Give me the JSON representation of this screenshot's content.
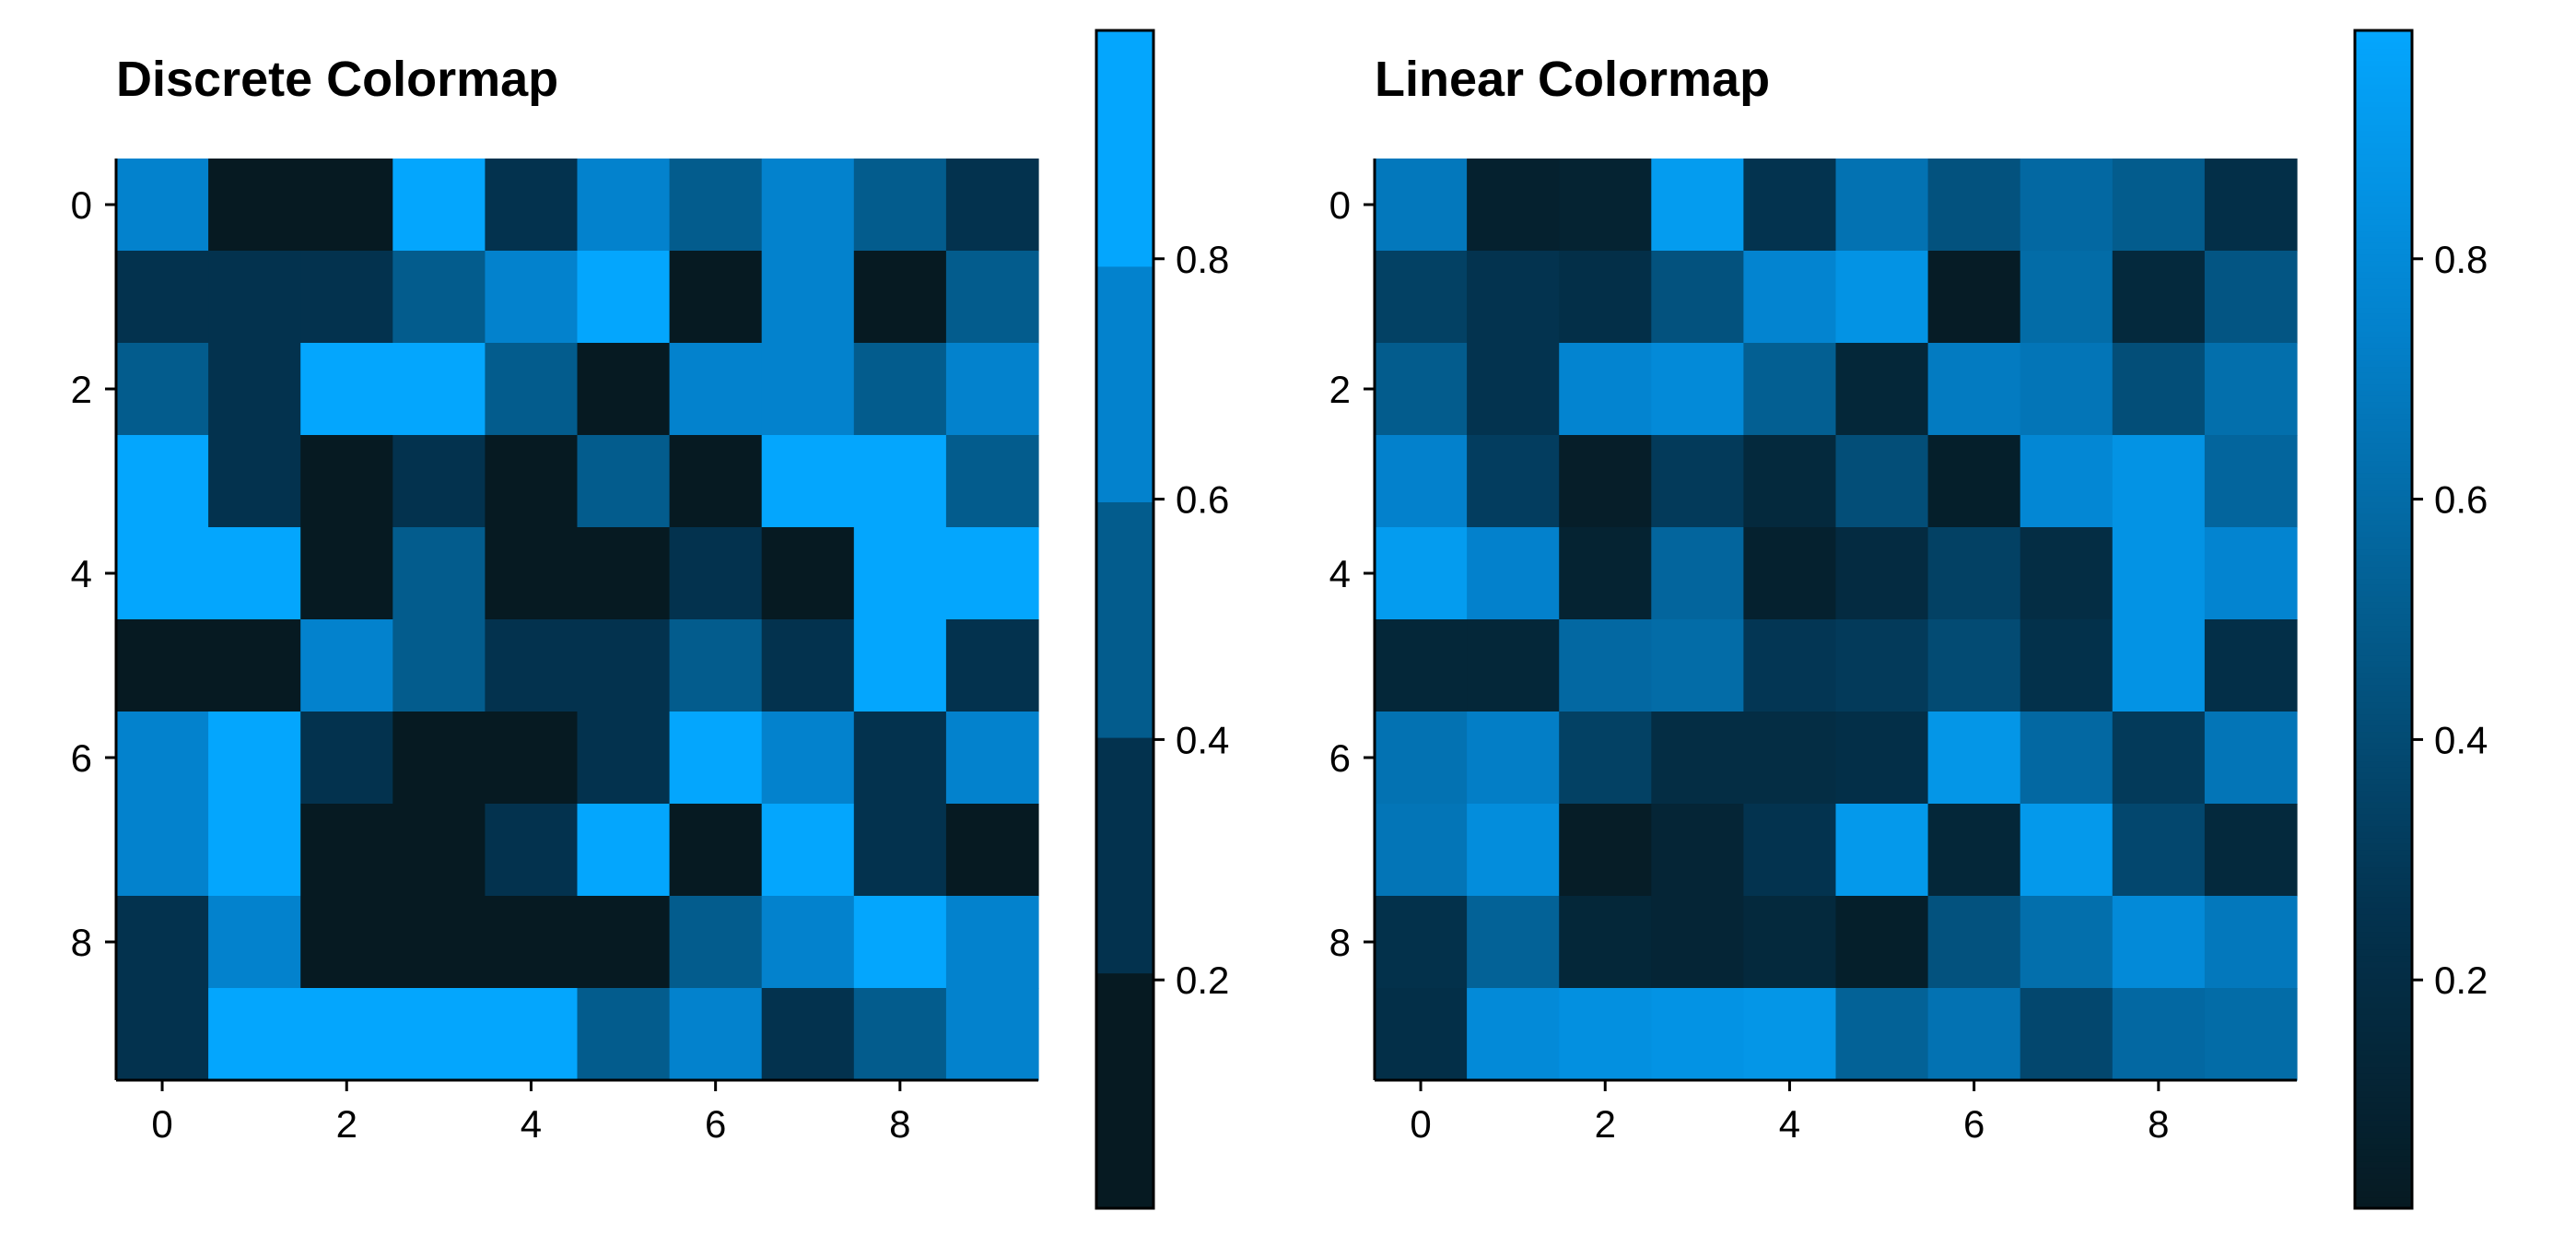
{
  "chart_data": [
    {
      "type": "heatmap",
      "title": "Discrete Colormap",
      "x_ticks": [
        "0",
        "2",
        "4",
        "6",
        "8"
      ],
      "y_ticks": [
        "0",
        "2",
        "4",
        "6",
        "8"
      ],
      "colorbar": {
        "ticks": [
          "0.2",
          "0.4",
          "0.6",
          "0.8"
        ],
        "tick_values": [
          0.2,
          0.4,
          0.6,
          0.8
        ],
        "range": [
          0.01,
          0.99
        ],
        "type": "discrete",
        "bins": 5
      },
      "colors": [
        "#061a22",
        "#03324e",
        "#035c8d",
        "#0382cd",
        "#04a6fd"
      ],
      "values": [
        [
          0.66,
          0.08,
          0.08,
          0.92,
          0.24,
          0.7,
          0.5,
          0.72,
          0.48,
          0.27
        ],
        [
          0.28,
          0.28,
          0.28,
          0.52,
          0.74,
          0.95,
          0.05,
          0.72,
          0.05,
          0.48
        ],
        [
          0.52,
          0.28,
          0.86,
          0.86,
          0.48,
          0.05,
          0.7,
          0.7,
          0.48,
          0.7
        ],
        [
          0.88,
          0.28,
          0.05,
          0.26,
          0.05,
          0.48,
          0.05,
          0.86,
          0.86,
          0.52
        ],
        [
          0.92,
          0.92,
          0.05,
          0.52,
          0.05,
          0.05,
          0.26,
          0.05,
          0.88,
          0.92
        ],
        [
          0.05,
          0.05,
          0.7,
          0.52,
          0.3,
          0.3,
          0.52,
          0.26,
          0.92,
          0.3
        ],
        [
          0.66,
          0.88,
          0.26,
          0.05,
          0.05,
          0.26,
          0.92,
          0.66,
          0.26,
          0.7
        ],
        [
          0.68,
          0.92,
          0.05,
          0.05,
          0.28,
          0.92,
          0.05,
          0.92,
          0.28,
          0.05
        ],
        [
          0.26,
          0.7,
          0.05,
          0.05,
          0.05,
          0.05,
          0.5,
          0.7,
          0.92,
          0.7
        ],
        [
          0.26,
          0.92,
          0.92,
          0.92,
          0.92,
          0.52,
          0.7,
          0.26,
          0.52,
          0.7
        ]
      ]
    },
    {
      "type": "heatmap",
      "title": "Linear Colormap",
      "x_ticks": [
        "0",
        "2",
        "4",
        "6",
        "8"
      ],
      "y_ticks": [
        "0",
        "2",
        "4",
        "6",
        "8"
      ],
      "colorbar": {
        "ticks": [
          "0.2",
          "0.4",
          "0.6",
          "0.8"
        ],
        "tick_values": [
          0.2,
          0.4,
          0.6,
          0.8
        ],
        "range": [
          0.01,
          0.99
        ],
        "type": "continuous"
      },
      "colors": [
        "#061a22",
        "#03324e",
        "#035c8d",
        "#0382cd",
        "#04a6fd"
      ],
      "values": [
        [
          0.68,
          0.08,
          0.1,
          0.92,
          0.26,
          0.64,
          0.44,
          0.58,
          0.5,
          0.22
        ],
        [
          0.34,
          0.26,
          0.22,
          0.44,
          0.76,
          0.86,
          0.03,
          0.6,
          0.16,
          0.46
        ],
        [
          0.5,
          0.26,
          0.76,
          0.8,
          0.52,
          0.14,
          0.7,
          0.66,
          0.42,
          0.62
        ],
        [
          0.74,
          0.32,
          0.05,
          0.3,
          0.16,
          0.42,
          0.06,
          0.78,
          0.86,
          0.56
        ],
        [
          0.92,
          0.74,
          0.1,
          0.56,
          0.08,
          0.18,
          0.34,
          0.2,
          0.86,
          0.76
        ],
        [
          0.14,
          0.14,
          0.58,
          0.6,
          0.28,
          0.3,
          0.4,
          0.24,
          0.86,
          0.22
        ],
        [
          0.64,
          0.72,
          0.34,
          0.2,
          0.2,
          0.22,
          0.88,
          0.58,
          0.3,
          0.66
        ],
        [
          0.66,
          0.82,
          0.04,
          0.12,
          0.26,
          0.9,
          0.14,
          0.9,
          0.38,
          0.16
        ],
        [
          0.24,
          0.54,
          0.14,
          0.12,
          0.16,
          0.06,
          0.44,
          0.62,
          0.8,
          0.68
        ],
        [
          0.22,
          0.8,
          0.84,
          0.86,
          0.88,
          0.54,
          0.64,
          0.38,
          0.58,
          0.6
        ]
      ]
    }
  ]
}
